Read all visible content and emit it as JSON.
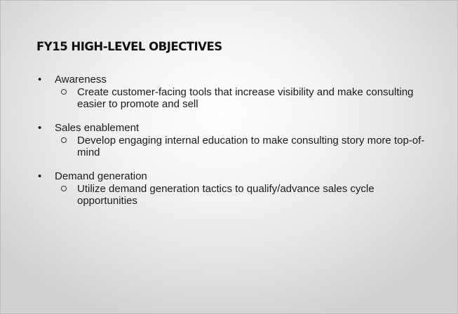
{
  "slide": {
    "title": "FY15 HIGH-LEVEL OBJECTIVES",
    "bullet_glyph": "•",
    "items": [
      {
        "label": "Awareness",
        "sub": "Create customer-facing tools that increase visibility and make consulting easier to promote and sell"
      },
      {
        "label": "Sales enablement",
        "sub": "Develop engaging internal education to make consulting story more top-of-mind"
      },
      {
        "label": "Demand generation",
        "sub": "Utilize demand generation tactics to qualify/advance sales cycle opportunities"
      }
    ]
  }
}
